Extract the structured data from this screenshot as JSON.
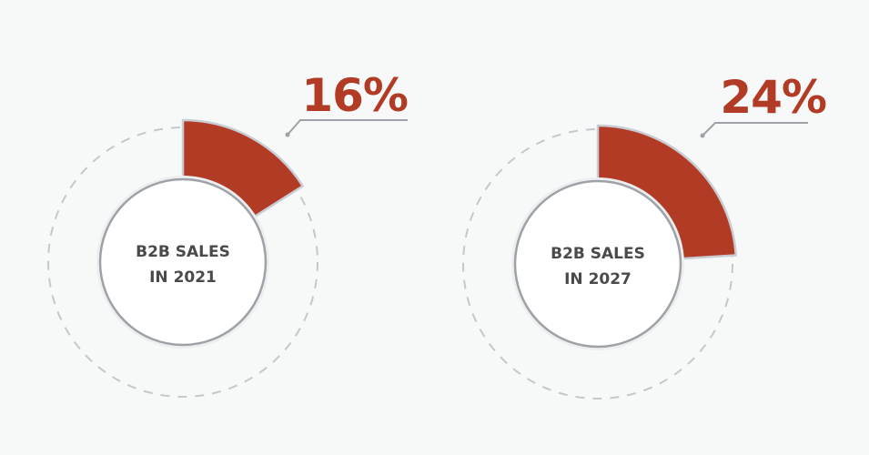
{
  "colors": {
    "background": "#f7f8f8",
    "accent": "#b23b26",
    "ring_border": "#9ea2a6",
    "dash": "#c4c8ce",
    "segment_stroke": "#c9ccd3",
    "leader": "#9ea2a6",
    "text": "#4a4a4a"
  },
  "chart_data": [
    {
      "type": "pie",
      "value": 16,
      "unit": "%",
      "value_label": "16%",
      "center_label": [
        "B2B SALES",
        "IN 2021"
      ]
    },
    {
      "type": "pie",
      "value": 24,
      "unit": "%",
      "value_label": "24%",
      "center_label": [
        "B2B SALES",
        "IN 2027"
      ]
    }
  ]
}
